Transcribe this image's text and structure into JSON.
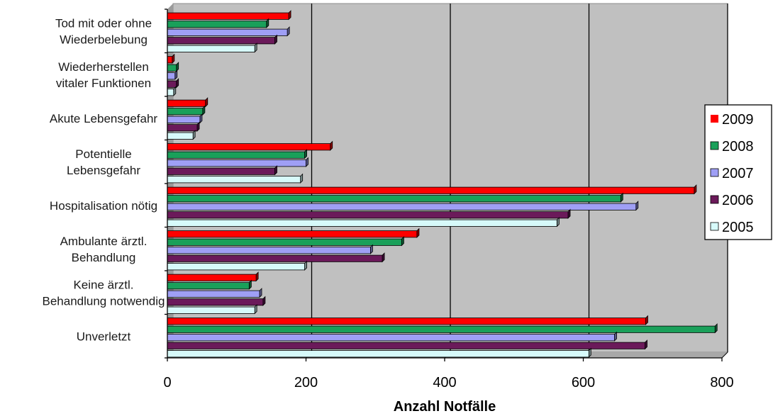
{
  "chart_data": {
    "type": "bar",
    "orientation": "horizontal",
    "categories": [
      [
        "Tod mit oder ohne",
        "Wiederbelebung"
      ],
      [
        "Wiederherstellen",
        "vitaler Funktionen"
      ],
      [
        "Akute Lebensgefahr"
      ],
      [
        "Potentielle",
        "Lebensgefahr"
      ],
      [
        "Hospitalisation nötig"
      ],
      [
        "Ambulante ärztl.",
        "Behandlung"
      ],
      [
        "Keine ärztl.",
        "Behandlung notwendig"
      ],
      [
        "Unverletzt"
      ]
    ],
    "series": [
      {
        "name": "2009",
        "color": "#ff0000",
        "values": [
          175,
          7,
          55,
          235,
          760,
          360,
          128,
          690
        ]
      },
      {
        "name": "2008",
        "color": "#1aa05a",
        "values": [
          143,
          13,
          51,
          198,
          654,
          338,
          118,
          790
        ]
      },
      {
        "name": "2007",
        "color": "#9f9ff5",
        "values": [
          173,
          11,
          47,
          200,
          676,
          293,
          133,
          645
        ]
      },
      {
        "name": "2006",
        "color": "#6b1a5a",
        "values": [
          155,
          13,
          43,
          155,
          578,
          310,
          138,
          689
        ]
      },
      {
        "name": "2005",
        "color": "#d7fafa",
        "values": [
          126,
          9,
          37,
          192,
          562,
          198,
          126,
          608
        ]
      }
    ],
    "xlabel": "Anzahl Notfälle",
    "xlim": [
      0,
      800
    ],
    "xticks": [
      "0",
      "200",
      "400",
      "600",
      "800"
    ],
    "grid": true,
    "legend": "right",
    "legend_order": [
      "2009",
      "2008",
      "2007",
      "2006",
      "2005"
    ]
  }
}
